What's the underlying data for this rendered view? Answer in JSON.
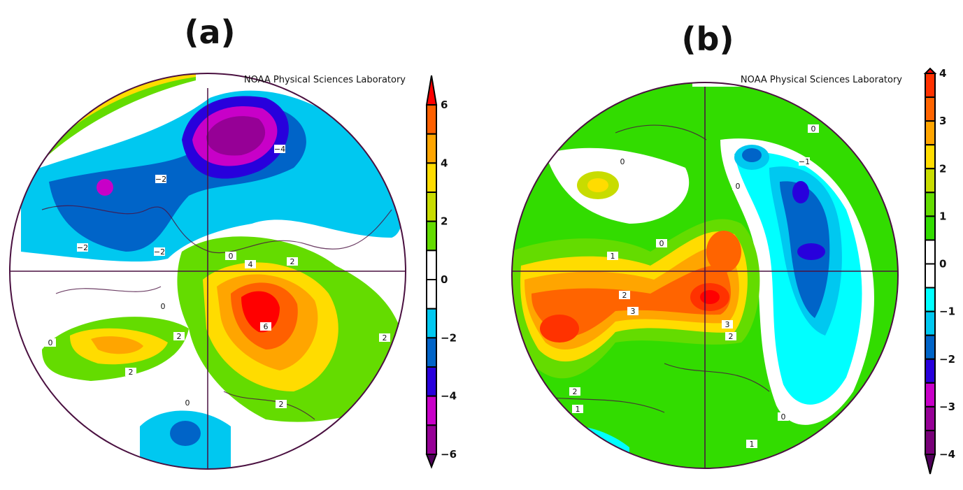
{
  "panels": [
    {
      "label": "(a)",
      "source": "NOAA Physical Sciences Laboratory",
      "colorbar": {
        "ticks": [
          "6",
          "4",
          "2",
          "0",
          "−2",
          "−4",
          "−6"
        ],
        "min": -6,
        "max": 6,
        "step": 1,
        "colors_high_to_low": [
          "#ff6000",
          "#ffa500",
          "#ffdc00",
          "#c8dc00",
          "#64dc00",
          "#ffffff",
          "#ffffff",
          "#00c8f0",
          "#0064c8",
          "#2800dc",
          "#c800c8",
          "#960096"
        ],
        "over_color": "#ff0000",
        "under_color": "#50005a"
      },
      "contour_labels": [
        "−4",
        "−2",
        "−2",
        "−2",
        "0",
        "4",
        "2",
        "0",
        "6",
        "2",
        "2",
        "2",
        "0",
        "2",
        "0"
      ]
    },
    {
      "label": "(b)",
      "source": "NOAA Physical Sciences Laboratory",
      "colorbar": {
        "ticks": [
          "4",
          "3",
          "2",
          "1",
          "0",
          "−1",
          "−2",
          "−3",
          "−4"
        ],
        "min": -4,
        "max": 4,
        "step": 0.5,
        "colors_high_to_low": [
          "#ff3200",
          "#ff6400",
          "#ffa500",
          "#ffdc00",
          "#c8dc00",
          "#64dc00",
          "#32dc00",
          "#ffffff",
          "#ffffff",
          "#00ffff",
          "#00c8f0",
          "#0064c8",
          "#2800dc",
          "#c800c8",
          "#960096",
          "#780078"
        ],
        "over_color": "#ff0000",
        "under_color": "#50005a"
      },
      "contour_labels": [
        "0",
        "0",
        "−1",
        "0",
        "1",
        "0",
        "2",
        "3",
        "3",
        "2",
        "2",
        "1",
        "0",
        "1"
      ]
    }
  ]
}
